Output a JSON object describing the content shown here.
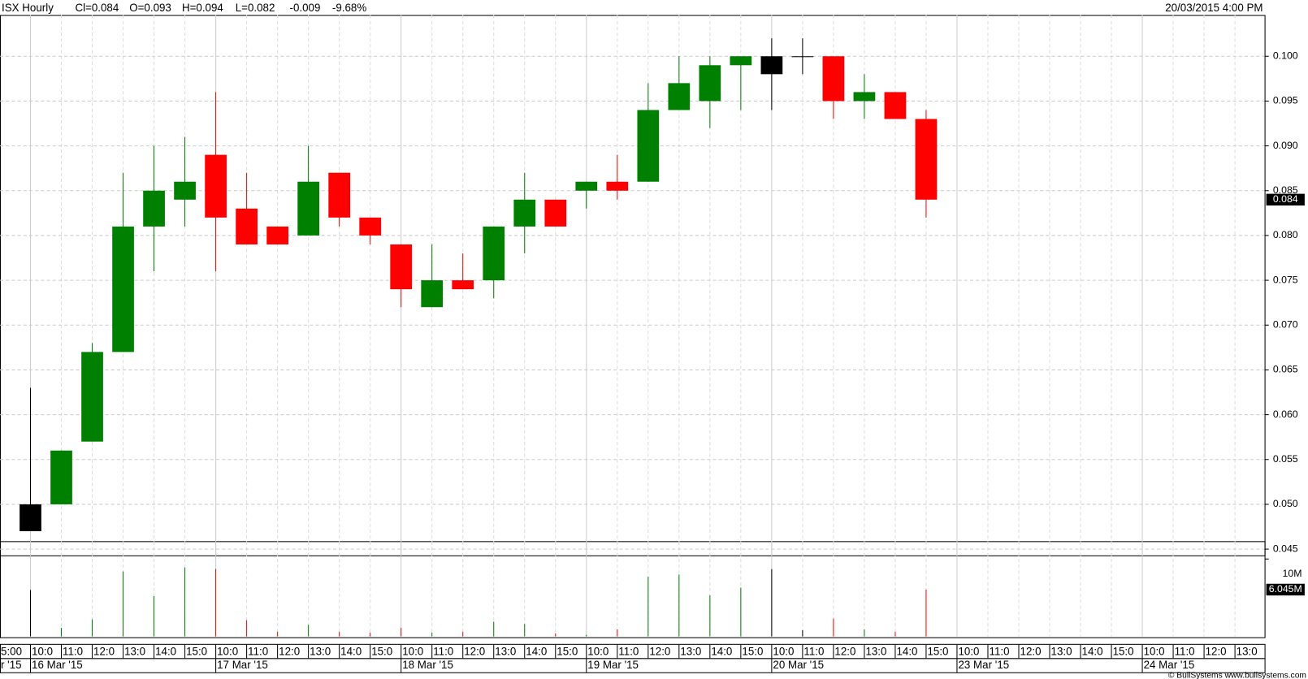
{
  "chart_data": {
    "type": "candlestick",
    "title": "ISX Hourly",
    "header_items": [
      "Cl=0.084",
      "O=0.093",
      "H=0.094",
      "L=0.082"
    ],
    "change": -0.009,
    "change_pct": {
      "value": -9.68,
      "label": "-9.68%"
    },
    "change_color": "#ff0000",
    "timestamp": "20/03/2015 4:00 PM",
    "copyright": "© BullSystems www.bullsystems.com",
    "x_labels": [
      "5:00",
      "10:0",
      "11:0",
      "12:0",
      "13:0",
      "14:0",
      "15:0",
      "10:0",
      "11:0",
      "12:0",
      "13:0",
      "14:0",
      "15:0",
      "10:0",
      "11:0",
      "12:0",
      "13:0",
      "14:0",
      "15:0",
      "10:0",
      "11:0",
      "12:0",
      "13:0",
      "14:0",
      "15:0",
      "10:0",
      "11:0",
      "12:0",
      "13:0",
      "14:0",
      "15:0",
      "10:0",
      "11:0",
      "12:0",
      "13:0",
      "14:0",
      "15:0",
      "10:0",
      "11:0",
      "12:0",
      "13:0"
    ],
    "date_labels": [
      "r '15",
      "16 Mar '15",
      null,
      null,
      null,
      null,
      null,
      "17 Mar '15",
      null,
      null,
      null,
      null,
      null,
      "18 Mar '15",
      null,
      null,
      null,
      null,
      null,
      "19 Mar '15",
      null,
      null,
      null,
      null,
      null,
      "20 Mar '15",
      null,
      null,
      null,
      null,
      null,
      "23 Mar '15",
      null,
      null,
      null,
      null,
      null,
      "24 Mar '15",
      null,
      null,
      null
    ],
    "open": [
      0.05,
      0.05,
      0.057,
      0.067,
      0.081,
      0.084,
      0.089,
      0.083,
      0.081,
      0.08,
      0.087,
      0.082,
      0.079,
      0.072,
      0.075,
      0.075,
      0.081,
      0.084,
      0.085,
      0.086,
      0.086,
      0.094,
      0.095,
      0.099,
      0.1,
      0.1,
      0.1,
      0.095,
      0.096,
      0.093
    ],
    "high": [
      0.063,
      0.056,
      0.068,
      0.087,
      0.09,
      0.091,
      0.096,
      0.087,
      0.081,
      0.09,
      0.087,
      0.082,
      0.079,
      0.079,
      0.078,
      0.081,
      0.087,
      0.084,
      0.086,
      0.089,
      0.097,
      0.1,
      0.1,
      0.1,
      0.102,
      0.102,
      0.1,
      0.098,
      0.096,
      0.094
    ],
    "low": [
      0.047,
      0.05,
      0.057,
      0.067,
      0.076,
      0.081,
      0.076,
      0.079,
      0.079,
      0.08,
      0.081,
      0.079,
      0.072,
      0.072,
      0.074,
      0.073,
      0.078,
      0.081,
      0.083,
      0.084,
      0.086,
      0.094,
      0.092,
      0.094,
      0.094,
      0.098,
      0.093,
      0.093,
      0.093,
      0.082
    ],
    "close": [
      0.047,
      0.056,
      0.067,
      0.081,
      0.085,
      0.086,
      0.082,
      0.079,
      0.079,
      0.086,
      0.082,
      0.08,
      0.074,
      0.075,
      0.074,
      0.081,
      0.084,
      0.081,
      0.086,
      0.085,
      0.094,
      0.097,
      0.099,
      0.1,
      0.098,
      0.1,
      0.095,
      0.096,
      0.093,
      0.084
    ],
    "colors": [
      "#000000",
      "#008000",
      "#008000",
      "#008000",
      "#008000",
      "#008000",
      "#ff0000",
      "#ff0000",
      "#ff0000",
      "#008000",
      "#ff0000",
      "#ff0000",
      "#ff0000",
      "#008000",
      "#ff0000",
      "#008000",
      "#008000",
      "#ff0000",
      "#008000",
      "#ff0000",
      "#008000",
      "#008000",
      "#008000",
      "#008000",
      "#000000",
      "#000000",
      "#ff0000",
      "#008000",
      "#ff0000",
      "#ff0000"
    ],
    "volume": [
      6.0,
      1.1,
      2.2,
      8.4,
      5.2,
      8.9,
      8.7,
      2.1,
      0.6,
      1.5,
      0.6,
      0.5,
      1.1,
      0.5,
      0.6,
      1.9,
      1.6,
      0.4,
      0.2,
      0.9,
      7.7,
      8.0,
      5.3,
      6.3,
      8.7,
      0.8,
      2.3,
      0.9,
      0.6,
      6.045
    ],
    "ylim": [
      0.0443,
      0.1046
    ],
    "yticks": [
      {
        "value": 0.045,
        "label": "0.045"
      },
      {
        "value": 0.05,
        "label": "0.050"
      },
      {
        "value": 0.055,
        "label": "0.055"
      },
      {
        "value": 0.06,
        "label": "0.060"
      },
      {
        "value": 0.065,
        "label": "0.065"
      },
      {
        "value": 0.07,
        "label": "0.070"
      },
      {
        "value": 0.075,
        "label": "0.075"
      },
      {
        "value": 0.08,
        "label": "0.080"
      },
      {
        "value": 0.085,
        "label": "0.085"
      },
      {
        "value": 0.09,
        "label": "0.090"
      },
      {
        "value": 0.095,
        "label": "0.095"
      },
      {
        "value": 0.1,
        "label": "0.100"
      }
    ],
    "last_price": 0.084,
    "y2lim": [
      0,
      12.3
    ],
    "y2ticks": [
      {
        "value": 10,
        "label": "10M"
      }
    ],
    "volume_marker": {
      "value": 6.045,
      "label": "6.045M"
    },
    "grid": true
  }
}
